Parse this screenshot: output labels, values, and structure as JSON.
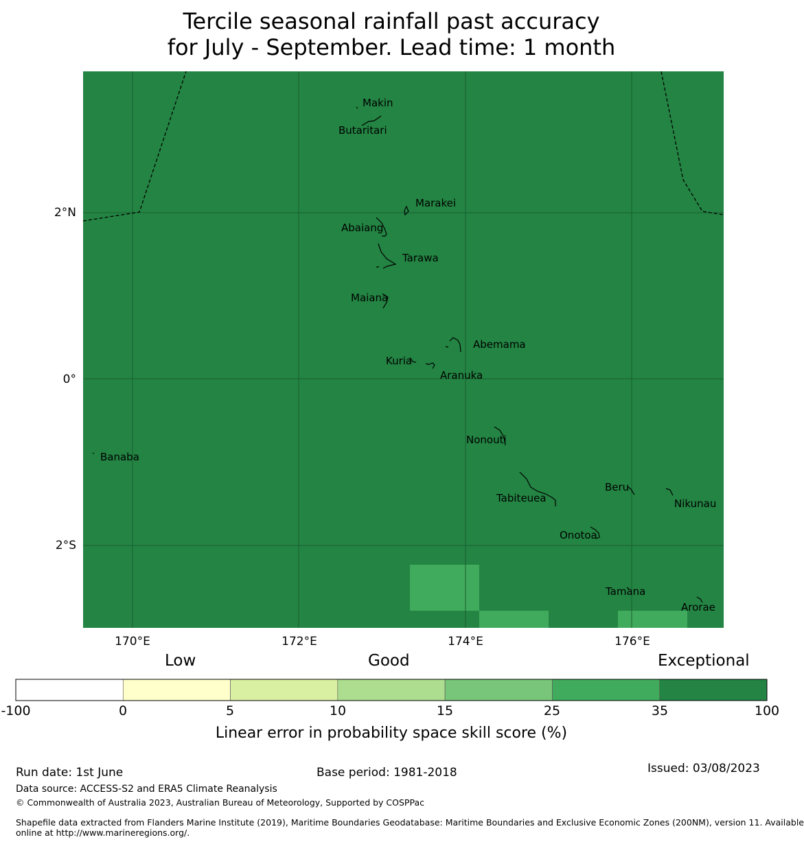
{
  "title": {
    "line1": "Tercile seasonal rainfall past accuracy",
    "line2": "for July - September. Lead time: 1 month"
  },
  "map": {
    "background_color": "#238443",
    "highlight_color": "#41ab5d",
    "lon_ticks": [
      "170°E",
      "172°E",
      "174°E",
      "176°E"
    ],
    "lat_ticks": [
      "2°N",
      "0°",
      "2°S"
    ],
    "islands": [
      "Makin",
      "Butaritari",
      "Marakei",
      "Abaiang",
      "Tarawa",
      "Maiana",
      "Abemama",
      "Kuria",
      "Aranuka",
      "Nonouti",
      "Banaba",
      "Beru",
      "Tabiteuea",
      "Nikunau",
      "Onotoa",
      "Tamana",
      "Arorae"
    ]
  },
  "colorbar": {
    "category_labels": [
      "Low",
      "Good",
      "Exceptional"
    ],
    "ticks": [
      "-100",
      "0",
      "5",
      "10",
      "15",
      "25",
      "35",
      "100"
    ],
    "colors": [
      "#ffffff",
      "#ffffcc",
      "#d9f0a3",
      "#addd8e",
      "#78c679",
      "#41ab5d",
      "#238443"
    ],
    "label": "Linear error in probability space skill score (%)"
  },
  "footer": {
    "run_date": "Run date: 1st June",
    "base_period": "Base period: 1981-2018",
    "issued": "Issued: 03/08/2023",
    "data_source": "Data source: ACCESS-S2 and ERA5 Climate Reanalysis",
    "copyright": "© Commonwealth of Australia 2023, Australian Bureau of Meteorology, Supported by COSPPac",
    "shapefile_line1": "Shapefile data extracted from Flanders Marine Institute (2019), Maritime Boundaries Geodatabase: Maritime Boundaries and Exclusive Economic Zones (200NM), version 11. Available",
    "shapefile_line2": "online at http://www.marineregions.org/."
  }
}
